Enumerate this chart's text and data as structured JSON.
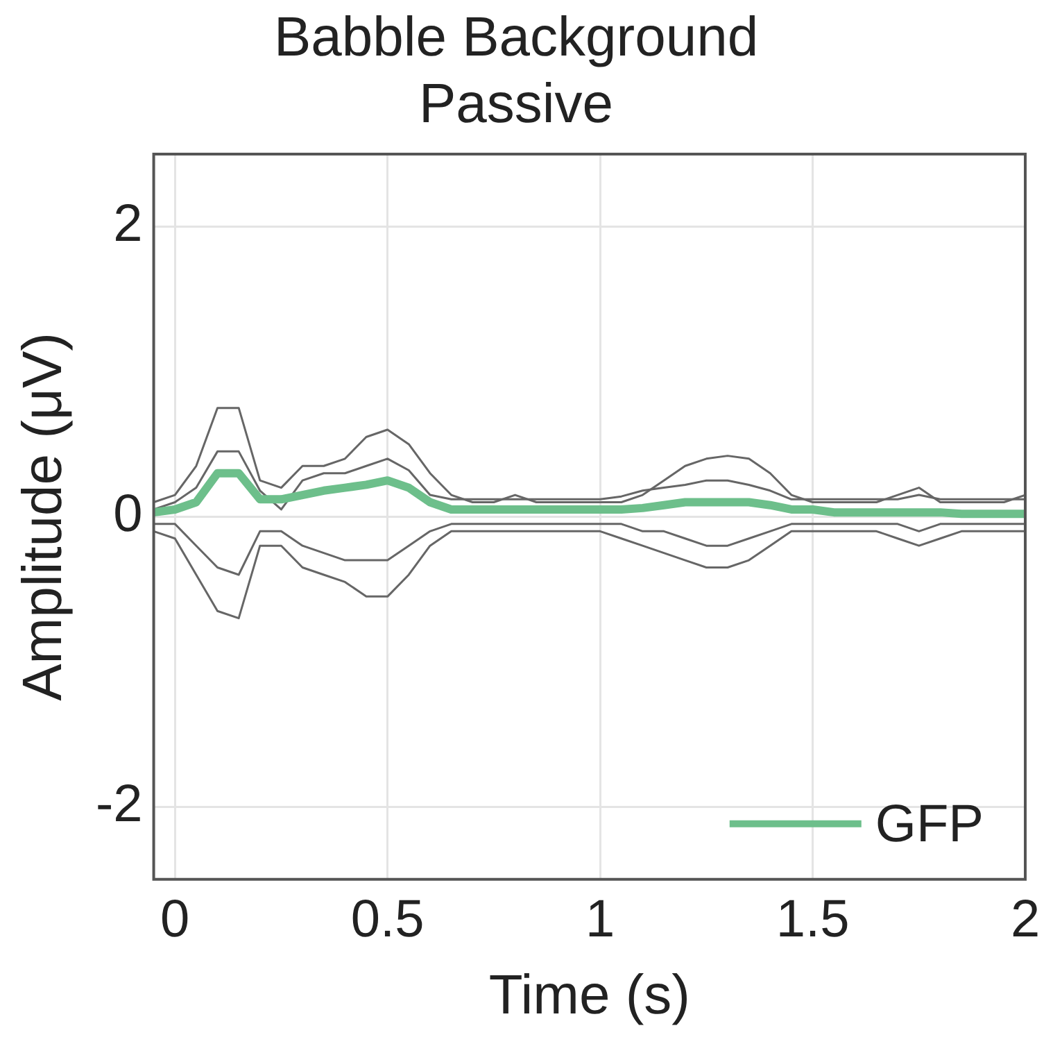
{
  "chart_data": {
    "type": "line",
    "title": [
      "Babble Background",
      "Passive"
    ],
    "xlabel": "Time (s)",
    "ylabel": "Amplitude (μV)",
    "x": [
      -0.05,
      0,
      0.05,
      0.1,
      0.15,
      0.2,
      0.25,
      0.3,
      0.35,
      0.4,
      0.45,
      0.5,
      0.55,
      0.6,
      0.65,
      0.7,
      0.75,
      0.8,
      0.85,
      0.9,
      0.95,
      1,
      1.05,
      1.1,
      1.15,
      1.2,
      1.25,
      1.3,
      1.35,
      1.4,
      1.45,
      1.5,
      1.55,
      1.6,
      1.65,
      1.7,
      1.75,
      1.8,
      1.85,
      1.9,
      1.95,
      2
    ],
    "series": [
      {
        "color": "#666666",
        "values": [
          0.1,
          0.15,
          0.35,
          0.75,
          0.75,
          0.25,
          0.2,
          0.35,
          0.35,
          0.4,
          0.55,
          0.6,
          0.5,
          0.3,
          0.15,
          0.1,
          0.1,
          0.15,
          0.1,
          0.1,
          0.1,
          0.1,
          0.1,
          0.15,
          0.25,
          0.35,
          0.4,
          0.42,
          0.4,
          0.3,
          0.15,
          0.1,
          0.1,
          0.1,
          0.1,
          0.15,
          0.2,
          0.1,
          0.1,
          0.1,
          0.1,
          0.15
        ]
      },
      {
        "color": "#666666",
        "values": [
          0.05,
          0.1,
          0.2,
          0.45,
          0.45,
          0.18,
          0.05,
          0.25,
          0.3,
          0.3,
          0.35,
          0.4,
          0.32,
          0.15,
          0.12,
          0.12,
          0.12,
          0.12,
          0.12,
          0.12,
          0.12,
          0.12,
          0.14,
          0.18,
          0.2,
          0.22,
          0.25,
          0.25,
          0.22,
          0.18,
          0.12,
          0.12,
          0.12,
          0.12,
          0.12,
          0.12,
          0.15,
          0.12,
          0.12,
          0.12,
          0.12,
          0.12
        ]
      },
      {
        "color": "#666666",
        "values": [
          -0.05,
          -0.05,
          -0.2,
          -0.35,
          -0.4,
          -0.1,
          -0.1,
          -0.2,
          -0.25,
          -0.3,
          -0.3,
          -0.3,
          -0.2,
          -0.1,
          -0.05,
          -0.05,
          -0.05,
          -0.05,
          -0.05,
          -0.05,
          -0.05,
          -0.05,
          -0.05,
          -0.1,
          -0.1,
          -0.15,
          -0.2,
          -0.2,
          -0.15,
          -0.1,
          -0.05,
          -0.05,
          -0.05,
          -0.05,
          -0.05,
          -0.05,
          -0.1,
          -0.05,
          -0.05,
          -0.05,
          -0.05,
          -0.05
        ]
      },
      {
        "color": "#666666",
        "values": [
          -0.1,
          -0.15,
          -0.4,
          -0.65,
          -0.7,
          -0.2,
          -0.2,
          -0.35,
          -0.4,
          -0.45,
          -0.55,
          -0.55,
          -0.4,
          -0.2,
          -0.1,
          -0.1,
          -0.1,
          -0.1,
          -0.1,
          -0.1,
          -0.1,
          -0.1,
          -0.15,
          -0.2,
          -0.25,
          -0.3,
          -0.35,
          -0.35,
          -0.3,
          -0.2,
          -0.1,
          -0.1,
          -0.1,
          -0.1,
          -0.1,
          -0.15,
          -0.2,
          -0.15,
          -0.1,
          -0.1,
          -0.1,
          -0.1
        ]
      },
      {
        "name": "GFP",
        "color": "#6dbf8b",
        "values": [
          0.03,
          0.05,
          0.1,
          0.3,
          0.3,
          0.12,
          0.12,
          0.15,
          0.18,
          0.2,
          0.22,
          0.25,
          0.2,
          0.1,
          0.05,
          0.05,
          0.05,
          0.05,
          0.05,
          0.05,
          0.05,
          0.05,
          0.05,
          0.06,
          0.08,
          0.1,
          0.1,
          0.1,
          0.1,
          0.08,
          0.05,
          0.05,
          0.03,
          0.03,
          0.03,
          0.03,
          0.03,
          0.03,
          0.02,
          0.02,
          0.02,
          0.02
        ]
      }
    ],
    "xlim": [
      -0.05,
      2
    ],
    "xticks": [
      0,
      0.5,
      1,
      1.5,
      2
    ],
    "ylim": [
      -2.5,
      2.5
    ],
    "yticks": [
      -2,
      0,
      2
    ],
    "grid": true,
    "legend": "bottom right",
    "marker": "none",
    "line_style": "solid"
  }
}
